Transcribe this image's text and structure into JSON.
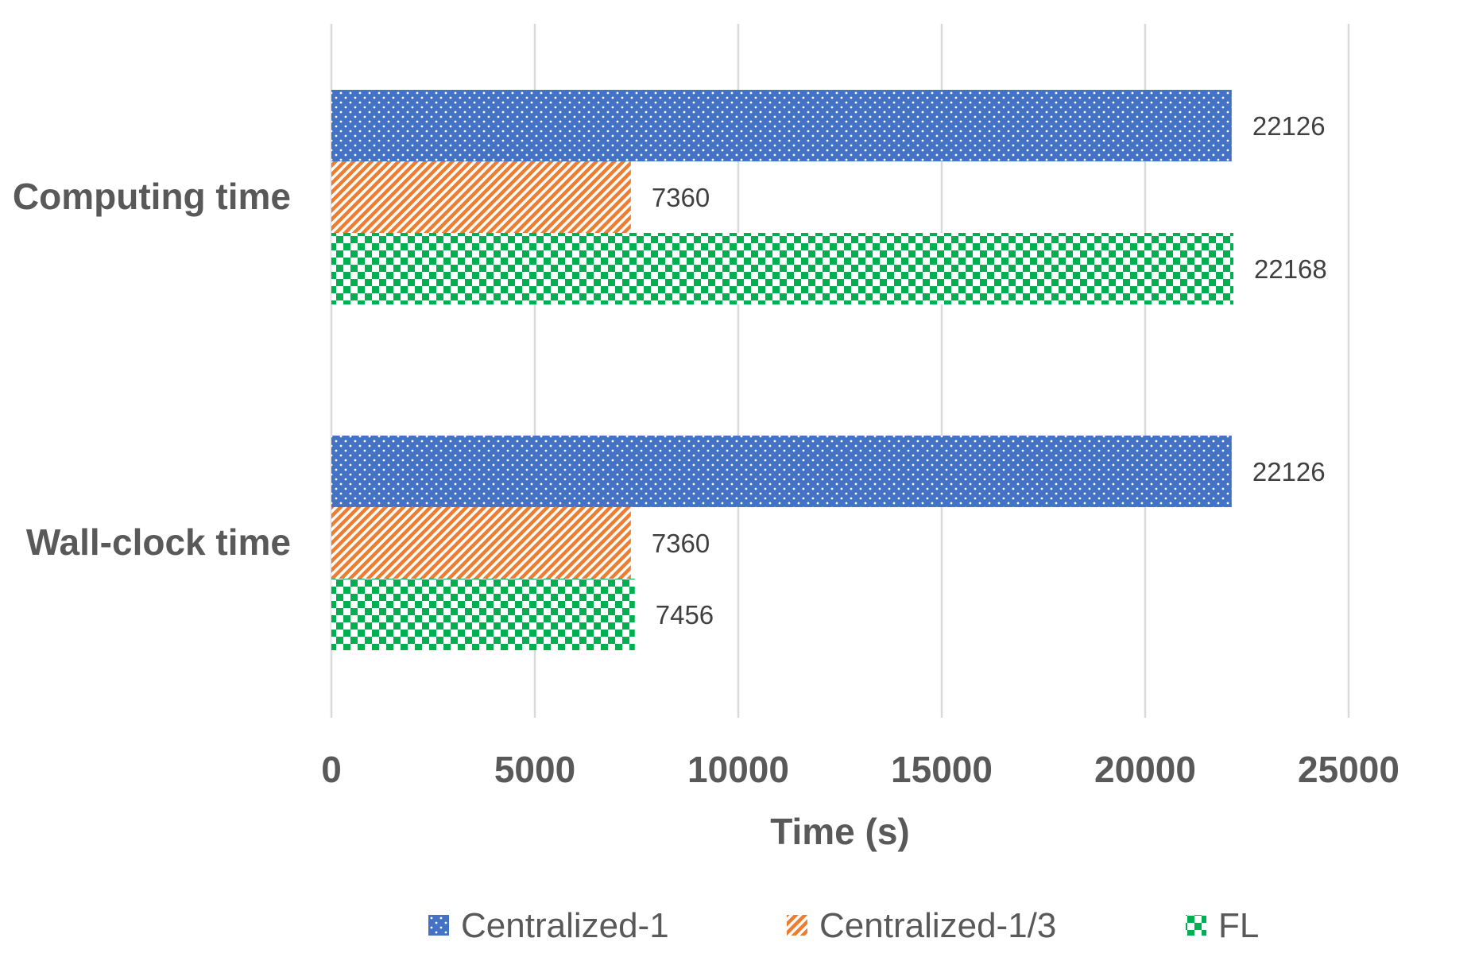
{
  "chart_data": {
    "type": "bar",
    "orientation": "horizontal",
    "categories": [
      "Computing time",
      "Wall-clock time"
    ],
    "series": [
      {
        "name": "Centralized-1",
        "values": [
          22126,
          22126
        ],
        "color": "#4472c4",
        "pattern": "dots"
      },
      {
        "name": "Centralized-1/3",
        "values": [
          7360,
          7360
        ],
        "color": "#ed7d31",
        "pattern": "diagonal-stripes"
      },
      {
        "name": "FL",
        "values": [
          22168,
          7456
        ],
        "color": "#00b050",
        "pattern": "checkerboard"
      }
    ],
    "data_labels": [
      [
        "22126",
        "22126"
      ],
      [
        "7360",
        "7360"
      ],
      [
        "22168",
        "7456"
      ]
    ],
    "x_ticks": [
      "0",
      "5000",
      "10000",
      "15000",
      "20000",
      "25000"
    ],
    "xlim": [
      0,
      25000
    ],
    "title": "",
    "xlabel": "Time (s)",
    "ylabel": "",
    "grid": "vertical",
    "legend_position": "bottom"
  }
}
